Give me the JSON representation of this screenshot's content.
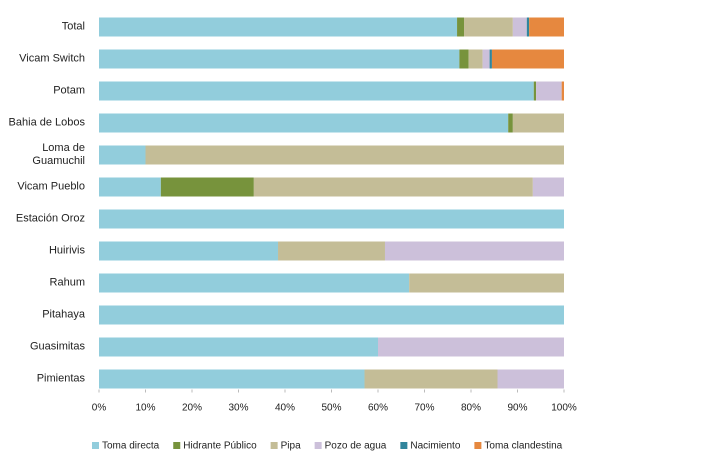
{
  "chart_data": {
    "type": "stacked_barh",
    "categories": [
      "Total",
      "Vicam Switch",
      "Potam",
      "Bahia de Lobos",
      "Loma de\nGuamuchil",
      "Vicam Pueblo",
      "Estación Oroz",
      "Huirivis",
      "Rahum",
      "Pitahaya",
      "Guasimitas",
      "Pimientas"
    ],
    "series": [
      {
        "name": "Toma directa",
        "color": "#92cddc",
        "values": [
          77,
          77.5,
          93.5,
          88,
          10,
          13.3,
          100,
          38.5,
          66.7,
          100,
          60,
          57.1
        ]
      },
      {
        "name": "Hidrante Público",
        "color": "#77933c",
        "values": [
          1.5,
          2,
          0.5,
          1,
          0,
          20,
          0,
          0,
          0,
          0,
          0,
          0
        ]
      },
      {
        "name": "Pipa",
        "color": "#c4bd97",
        "values": [
          10.5,
          3,
          0,
          11,
          90,
          60,
          0,
          23,
          33.3,
          0,
          0,
          28.6
        ]
      },
      {
        "name": "Pozo de agua",
        "color": "#ccc0da",
        "values": [
          3,
          1.5,
          5.5,
          0,
          0,
          6.7,
          0,
          38.5,
          0,
          0,
          40,
          14.3
        ]
      },
      {
        "name": "Nacimiento",
        "color": "#31859c",
        "values": [
          0.5,
          0.5,
          0,
          0,
          0,
          0,
          0,
          0,
          0,
          0,
          0,
          0
        ]
      },
      {
        "name": "Toma clandestina",
        "color": "#e6883f",
        "values": [
          7.5,
          15.5,
          0.5,
          0,
          0,
          0,
          0,
          0,
          0,
          0,
          0,
          0
        ]
      }
    ],
    "xlim": [
      0,
      100
    ],
    "xticks": [
      {
        "value": 0,
        "label": "0%"
      },
      {
        "value": 10,
        "label": "10%"
      },
      {
        "value": 20,
        "label": "20%"
      },
      {
        "value": 30,
        "label": "30%"
      },
      {
        "value": 40,
        "label": "40%"
      },
      {
        "value": 50,
        "label": "50%"
      },
      {
        "value": 60,
        "label": "60%"
      },
      {
        "value": 70,
        "label": "70%"
      },
      {
        "value": 80,
        "label": "80%"
      },
      {
        "value": 90,
        "label": "90%"
      },
      {
        "value": 100,
        "label": "100%"
      }
    ],
    "legend": "bottom"
  }
}
